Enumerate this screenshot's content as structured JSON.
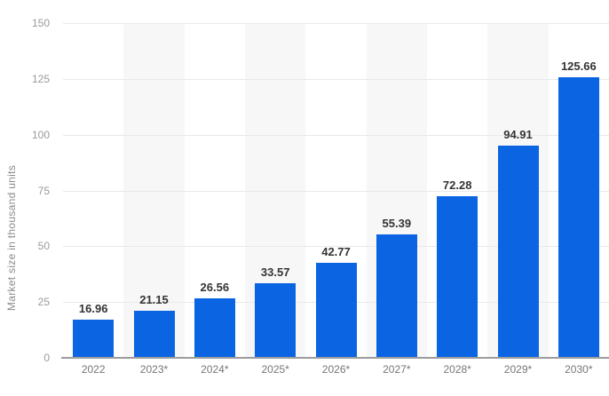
{
  "chart_data": {
    "type": "bar",
    "title": "",
    "ylabel": "Market size in thousand units",
    "xlabel": "",
    "categories": [
      "2022",
      "2023*",
      "2024*",
      "2025*",
      "2026*",
      "2027*",
      "2028*",
      "2029*",
      "2030*"
    ],
    "values": [
      16.96,
      21.15,
      26.56,
      33.57,
      42.77,
      55.39,
      72.28,
      94.91,
      125.66
    ],
    "value_labels": [
      "16.96",
      "21.15",
      "26.56",
      "33.57",
      "42.77",
      "55.39",
      "72.28",
      "94.91",
      "125.66"
    ],
    "ylim": [
      0,
      150
    ],
    "yticks": [
      0,
      25,
      50,
      75,
      100,
      125,
      150
    ],
    "grid": true,
    "legend": false,
    "colors": {
      "bar": "#0b65e2",
      "band": "#f7f7f7",
      "gridline": "#e9e9e9",
      "axis_line": "#9c9c9c",
      "tick_text": "#9a9a9a",
      "category_text": "#767676",
      "value_text": "#333333",
      "background": "#ffffff"
    }
  }
}
